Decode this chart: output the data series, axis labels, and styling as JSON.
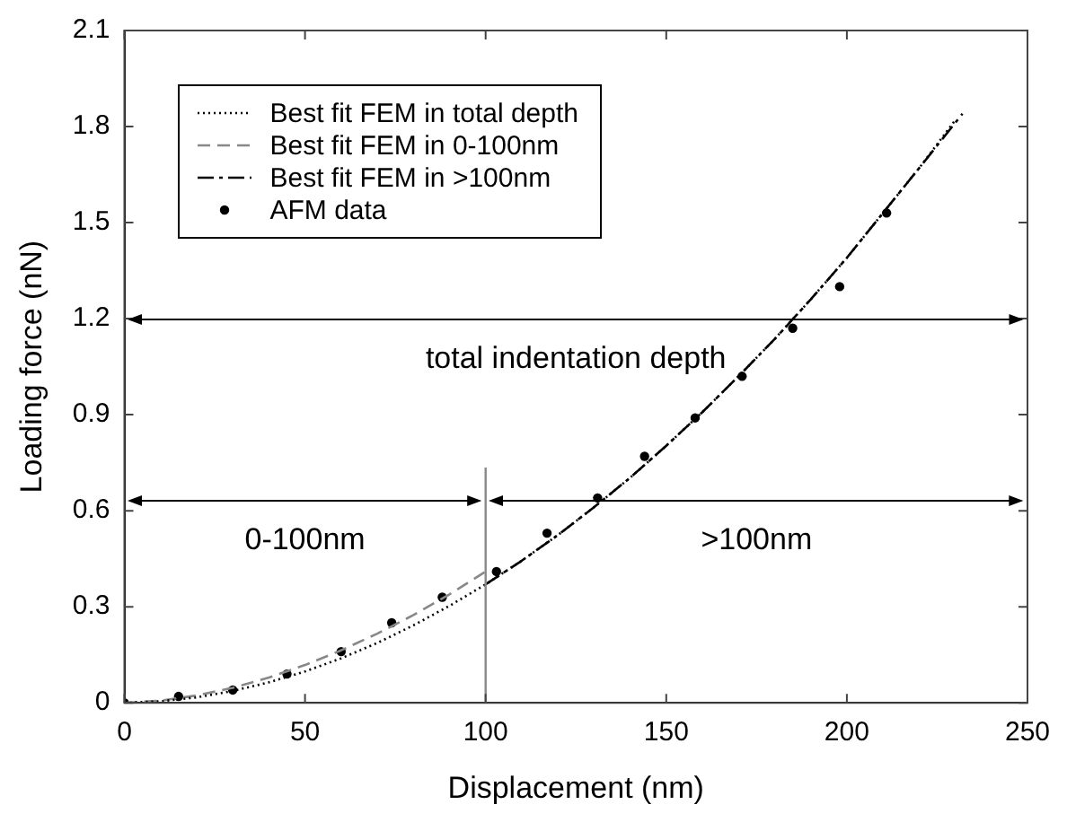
{
  "chart_data": {
    "type": "line",
    "xlabel": "Displacement (nm)",
    "ylabel": "Loading force (nN)",
    "xlim": [
      0,
      250
    ],
    "xticks": [
      0,
      50,
      100,
      150,
      200,
      250
    ],
    "ylim": [
      0,
      2.1
    ],
    "yticks": [
      0,
      0.3,
      0.6,
      0.9,
      1.2,
      1.5,
      1.8,
      2.1
    ],
    "legend": "top left",
    "tick_labels": "xy",
    "series": [
      {
        "name": "Best fit FEM in total depth",
        "color": "#000000",
        "line_style": "dotted",
        "marker": "none",
        "x": [
          0,
          10,
          20,
          30,
          40,
          50,
          60,
          70,
          80,
          90,
          100,
          110,
          120,
          130,
          140,
          150,
          160,
          170,
          180,
          190,
          200,
          210,
          220,
          230
        ],
        "values": [
          0,
          0.005,
          0.017,
          0.037,
          0.064,
          0.098,
          0.139,
          0.187,
          0.242,
          0.303,
          0.37,
          0.444,
          0.524,
          0.611,
          0.703,
          0.803,
          0.908,
          1.02,
          1.136,
          1.26,
          1.39,
          1.53,
          1.67,
          1.82
        ]
      },
      {
        "name": "Best fit FEM in 0-100nm",
        "color": "#888888",
        "line_style": "dashed",
        "marker": "none",
        "x": [
          0,
          10,
          20,
          30,
          40,
          50,
          60,
          70,
          80,
          90,
          100
        ],
        "values": [
          0,
          0.007,
          0.023,
          0.047,
          0.079,
          0.118,
          0.164,
          0.216,
          0.274,
          0.339,
          0.41
        ]
      },
      {
        "name": "Best fit FEM in >100nm",
        "color": "#000000",
        "line_style": "dashdot",
        "marker": "none",
        "x": [
          100,
          110,
          120,
          130,
          140,
          150,
          160,
          170,
          180,
          190,
          200,
          210,
          220,
          232
        ],
        "values": [
          0.37,
          0.444,
          0.524,
          0.611,
          0.703,
          0.803,
          0.908,
          1.02,
          1.136,
          1.26,
          1.39,
          1.53,
          1.67,
          1.84
        ]
      },
      {
        "name": "AFM data",
        "type": "scatter",
        "color": "#000000",
        "marker": "circle",
        "x": [
          0,
          15,
          30,
          45,
          60,
          74,
          88,
          103,
          117,
          131,
          144,
          158,
          171,
          185,
          198,
          211
        ],
        "values": [
          0,
          0.02,
          0.04,
          0.09,
          0.16,
          0.25,
          0.33,
          0.41,
          0.53,
          0.64,
          0.77,
          0.89,
          1.02,
          1.17,
          1.3,
          1.53
        ]
      }
    ],
    "ref_lines": [
      {
        "axis": "x",
        "value": 100,
        "color": "#888888"
      }
    ],
    "annotations": [
      "total indentation depth",
      "0-100nm",
      ">100nm"
    ]
  }
}
